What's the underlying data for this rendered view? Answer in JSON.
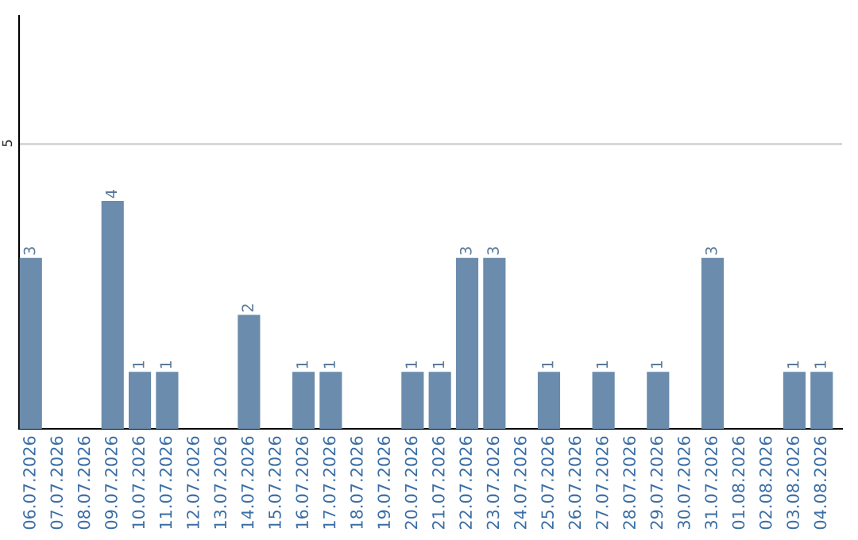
{
  "chart_data": {
    "type": "bar",
    "categories": [
      "06.07.2026",
      "07.07.2026",
      "08.07.2026",
      "09.07.2026",
      "10.07.2026",
      "11.07.2026",
      "12.07.2026",
      "13.07.2026",
      "14.07.2026",
      "15.07.2026",
      "16.07.2026",
      "17.07.2026",
      "18.07.2026",
      "19.07.2026",
      "20.07.2026",
      "21.07.2026",
      "22.07.2026",
      "23.07.2026",
      "24.07.2026",
      "25.07.2026",
      "26.07.2026",
      "27.07.2026",
      "28.07.2026",
      "29.07.2026",
      "30.07.2026",
      "31.07.2026",
      "01.08.2026",
      "02.08.2026",
      "03.08.2026",
      "04.08.2026"
    ],
    "values": [
      3,
      0,
      0,
      4,
      1,
      1,
      0,
      0,
      2,
      0,
      1,
      1,
      0,
      0,
      1,
      1,
      3,
      3,
      0,
      1,
      0,
      1,
      0,
      1,
      0,
      3,
      0,
      0,
      1,
      1
    ],
    "value_labels": [
      "3",
      null,
      null,
      "4",
      "1",
      "1",
      null,
      null,
      "2",
      null,
      "1",
      "1",
      null,
      null,
      "1",
      "1",
      "3",
      "3",
      null,
      "1",
      null,
      "1",
      null,
      "1",
      null,
      "3",
      null,
      null,
      "1",
      "1"
    ],
    "color": "#6b8cac",
    "ylim": [
      0,
      7.25
    ],
    "yticks": [
      5
    ],
    "grid": "y",
    "legend": false
  }
}
